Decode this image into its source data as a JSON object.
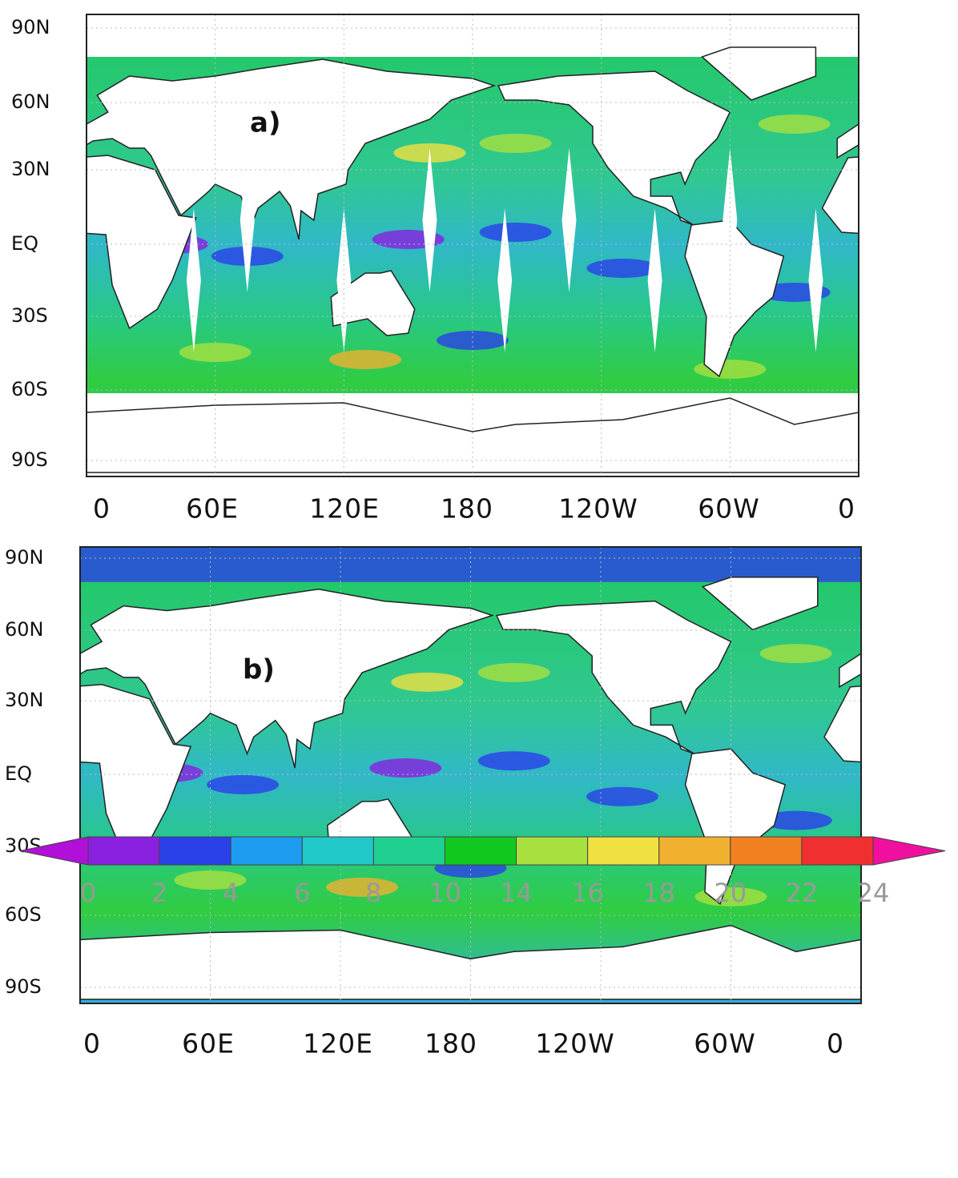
{
  "panels": [
    {
      "label": "a)",
      "lat_labels": [
        "90N",
        "60N",
        "30N",
        "EQ",
        "30S",
        "60S",
        "90S"
      ],
      "lon_labels": [
        "0",
        "60E",
        "120E",
        "180",
        "120W",
        "60W",
        "0"
      ]
    },
    {
      "label": "b)",
      "lat_labels": [
        "90N",
        "60N",
        "30N",
        "EQ",
        "30S",
        "60S",
        "90S"
      ],
      "lon_labels": [
        "0",
        "60E",
        "120E",
        "180",
        "120W",
        "60W",
        "0"
      ]
    }
  ],
  "colorbar": {
    "ticks": [
      0,
      2,
      4,
      6,
      8,
      10,
      14,
      16,
      18,
      20,
      22,
      24
    ],
    "colors": [
      "#b010d8",
      "#8a20e0",
      "#2a40e8",
      "#1e9cf0",
      "#20c8c8",
      "#20d090",
      "#10c820",
      "#a8e040",
      "#f0e040",
      "#f0b030",
      "#f08020",
      "#f03030",
      "#f010a0"
    ]
  }
}
